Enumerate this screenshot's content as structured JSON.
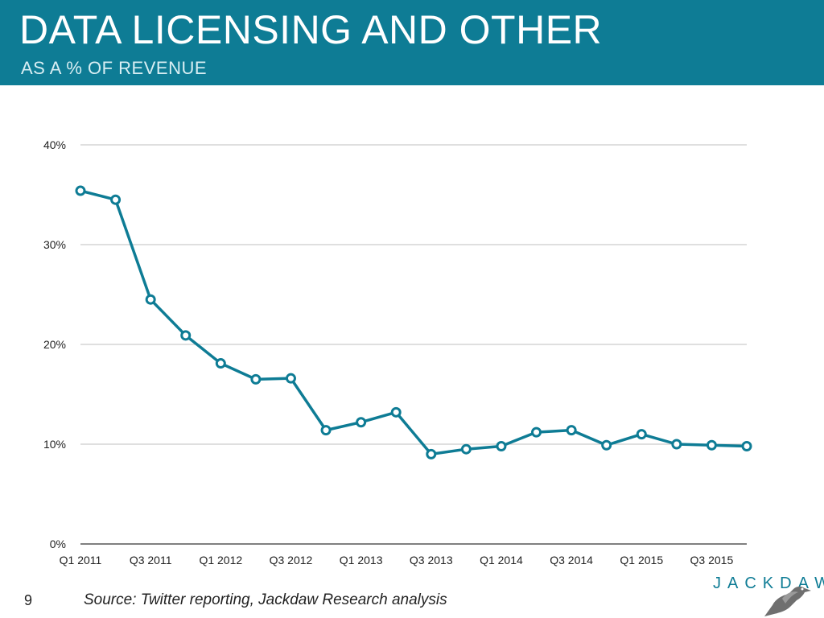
{
  "header": {
    "title": "DATA LICENSING AND OTHER",
    "subtitle": "AS A % OF REVENUE"
  },
  "footer": {
    "slide_number": "9",
    "source": "Source: Twitter reporting, Jackdaw Research analysis",
    "logo_text": "JACKDAW",
    "logo_icon": "jackdaw-bird-icon"
  },
  "colors": {
    "header_bg": "#0e7c95",
    "line": "#0e7c95",
    "grid": "#bfbfbf"
  },
  "chart_data": {
    "type": "line",
    "x": [
      "Q1 2011",
      "Q2 2011",
      "Q3 2011",
      "Q4 2011",
      "Q1 2012",
      "Q2 2012",
      "Q3 2012",
      "Q4 2012",
      "Q1 2013",
      "Q2 2013",
      "Q3 2013",
      "Q4 2013",
      "Q1 2014",
      "Q2 2014",
      "Q3 2014",
      "Q4 2014",
      "Q1 2015",
      "Q2 2015",
      "Q3 2015",
      "Q4 2015"
    ],
    "x_tick_labels": [
      "Q1 2011",
      "",
      "Q3 2011",
      "",
      "Q1 2012",
      "",
      "Q3 2012",
      "",
      "Q1 2013",
      "",
      "Q3 2013",
      "",
      "Q1 2014",
      "",
      "Q3 2014",
      "",
      "Q1 2015",
      "",
      "Q3 2015",
      ""
    ],
    "series": [
      {
        "values": [
          35.4,
          34.5,
          24.5,
          20.9,
          18.1,
          16.5,
          16.6,
          11.4,
          12.2,
          13.2,
          9.0,
          9.5,
          9.8,
          11.2,
          11.4,
          9.9,
          11.0,
          10.0,
          9.9,
          9.8
        ]
      }
    ],
    "y_ticks": [
      "0%",
      "10%",
      "20%",
      "30%",
      "40%"
    ],
    "ylim": [
      0,
      40
    ],
    "grid": true,
    "legend": "none",
    "xlabel": "",
    "ylabel": ""
  }
}
